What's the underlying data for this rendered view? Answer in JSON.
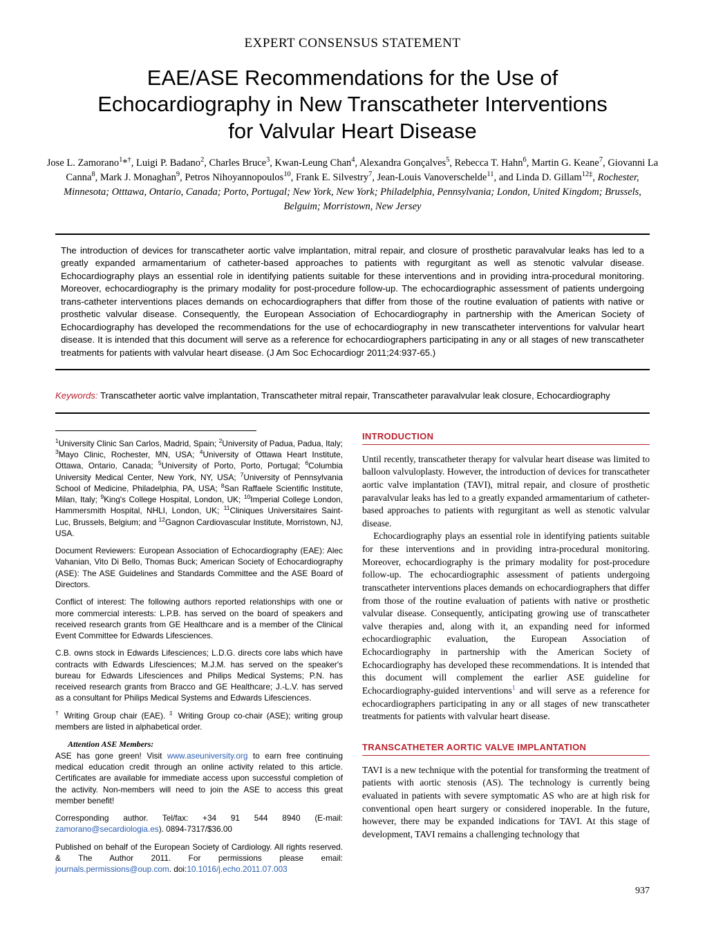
{
  "header_category": "EXPERT CONSENSUS STATEMENT",
  "title": "EAE/ASE Recommendations for the Use of Echocardiography in New Transcatheter Interventions for Valvular Heart Disease",
  "authors_html": "Jose L. Zamorano<sup>1</sup>*<sup>†</sup>, Luigi P. Badano<sup>2</sup>, Charles Bruce<sup>3</sup>, Kwan-Leung Chan<sup>4</sup>, Alexandra Gonçalves<sup>5</sup>, Rebecca T. Hahn<sup>6</sup>, Martin G. Keane<sup>7</sup>, Giovanni La Canna<sup>8</sup>, Mark J. Monaghan<sup>9</sup>, Petros Nihoyannopoulos<sup>10</sup>, Frank E. Silvestry<sup>7</sup>, Jean-Louis Vanoverschelde<sup>11</sup>, and Linda D. Gillam<sup>12‡</sup>, <span class=\"affil-line\">Rochester, Minnesota; Otttawa, Ontario, Canada; Porto, Portugal; New York, New York; Philadelphia, Pennsylvania; London, United Kingdom; Brussels, Belguim; Morristown, New Jersey</span>",
  "abstract": "The introduction of devices for transcatheter aortic valve implantation, mitral repair, and closure of prosthetic paravalvular leaks has led to a greatly expanded armamentarium of catheter-based approaches to patients with regurgitant as well as stenotic valvular disease. Echocardiography plays an essential role in identifying patients suitable for these interventions and in providing intra-procedural monitoring. Moreover, echocardiography is the primary modality for post-procedure follow-up. The echocardiographic assessment of patients undergoing trans-catheter interventions places demands on echocardiographers that differ from those of the routine evaluation of patients with native or prosthetic valvular disease. Consequently, the European Association of Echocardiography in partnership with the American Society of Echocardiography has developed the recommendations for the use of echocardiography in new transcatheter interventions for valvular heart disease. It is intended that this document will serve as a reference for echocardiographers participating in any or all stages of new transcatheter treatments for patients with valvular heart disease. (J Am Soc Echocardiogr 2011;24:937-65.)",
  "keywords_label": "Keywords:",
  "keywords_text": "Transcatheter aortic valve implantation, Transcatheter mitral repair, Transcatheter paravalvular leak closure, Echocardiography",
  "left": {
    "affiliations_html": "<sup>1</sup>University Clinic San Carlos, Madrid, Spain; <sup>2</sup>University of Padua, Padua, Italy; <sup>3</sup>Mayo Clinic, Rochester, MN, USA; <sup>4</sup>University of Ottawa Heart Institute, Ottawa, Ontario, Canada; <sup>5</sup>University of Porto, Porto, Portugal; <sup>6</sup>Columbia University Medical Center, New York, NY, USA; <sup>7</sup>University of Pennsylvania School of Medicine, Philadelphia, PA, USA; <sup>8</sup>San Raffaele Scientific Institute, Milan, Italy; <sup>9</sup>King's College Hospital, London, UK; <sup>10</sup>Imperial College London, Hammersmith Hospital, NHLI, London, UK; <sup>11</sup>Cliniques Universitaires Saint-Luc, Brussels, Belgium; and <sup>12</sup>Gagnon Cardiovascular Institute, Morristown, NJ, USA.",
    "reviewers": "Document Reviewers: European Association of Echocardiography (EAE): Alec Vahanian, Vito Di Bello, Thomas Buck; American Society of Echocardiography (ASE): The ASE Guidelines and Standards Committee and the ASE Board of Directors.",
    "coi": "Conflict of interest: The following authors reported relationships with one or more commercial interests: L.P.B. has served on the board of speakers and received research grants from GE Healthcare and is a member of the Clinical Event Committee for Edwards Lifesciences.",
    "coi2": "C.B. owns stock in Edwards Lifesciences; L.D.G. directs core labs which have contracts with Edwards Lifesciences; M.J.M. has served on the speaker's bureau for Edwards Lifesciences and Philips Medical Systems; P.N. has received research grants from Bracco and GE Healthcare; J.-L.V. has served as a consultant for Philips Medical Systems and Edwards Lifesciences.",
    "wg_html": "<sup>†</sup> Writing Group chair (EAE). <sup>‡</sup> Writing Group co-chair (ASE); writing group members are listed in alphabetical order.",
    "attention_label": "Attention ASE Members:",
    "attention_body_html": "ASE has gone green! Visit <span class=\"link\">www.aseuniversity.org</span> to earn free continuing medical education credit through an online activity related to this article. Certificates are available for immediate access upon successful completion of the activity. Non-members will need to join the ASE to access this great member benefit!",
    "corresponding_html": "Corresponding author. Tel/fax: +34 91 544 8940 (E-mail: <span class=\"link\">zamorano@secardiologia.es</span>). 0894-7317/$36.00",
    "published_html": "Published on behalf of the European Society of Cardiology. All rights reserved. & The Author 2011. For permissions please email: <span class=\"link\">journals.permissions@oup.com</span>. doi:<span class=\"link\">10.1016/j.echo.2011.07.003</span>"
  },
  "right": {
    "intro_heading": "INTRODUCTION",
    "intro_p1": "Until recently, transcatheter therapy for valvular heart disease was limited to balloon valvuloplasty. However, the introduction of devices for transcatheter aortic valve implantation (TAVI), mitral repair, and closure of prosthetic paravalvular leaks has led to a greatly expanded armamentarium of catheter-based approaches to patients with regurgitant as well as stenotic valvular disease.",
    "intro_p2_html": "Echocardiography plays an essential role in identifying patients suitable for these interventions and in providing intra-procedural monitoring. Moreover, echocardiography is the primary modality for post-procedure follow-up. The echocardiographic assessment of patients undergoing transcatheter interventions places demands on echocardiographers that differ from those of the routine evaluation of patients with native or prosthetic valvular disease. Consequently, anticipating growing use of transcatheter valve therapies and, along with it, an expanding need for informed echocardiographic evaluation, the European Association of Echocardiography in partnership with the American Society of Echocardiography has developed these recommendations. It is intended that this document will complement the earlier ASE guideline for Echocardiography-guided interventions<sup class=\"link\">1</sup> and will serve as a reference for echocardiographers participating in any or all stages of new transcatheter treatments for patients with valvular heart disease.",
    "tavi_heading": "TRANSCATHETER AORTIC VALVE IMPLANTATION",
    "tavi_p1": "TAVI is a new technique with the potential for transforming the treatment of patients with aortic stenosis (AS). The technology is currently being evaluated in patients with severe symptomatic AS who are at high risk for conventional open heart surgery or considered inoperable. In the future, however, there may be expanded indications for TAVI. At this stage of development, TAVI remains a challenging technology that"
  },
  "page_number": "937",
  "colors": {
    "accent_red": "#b8232f",
    "link_blue": "#2a5db0",
    "text": "#000000",
    "background": "#ffffff"
  }
}
